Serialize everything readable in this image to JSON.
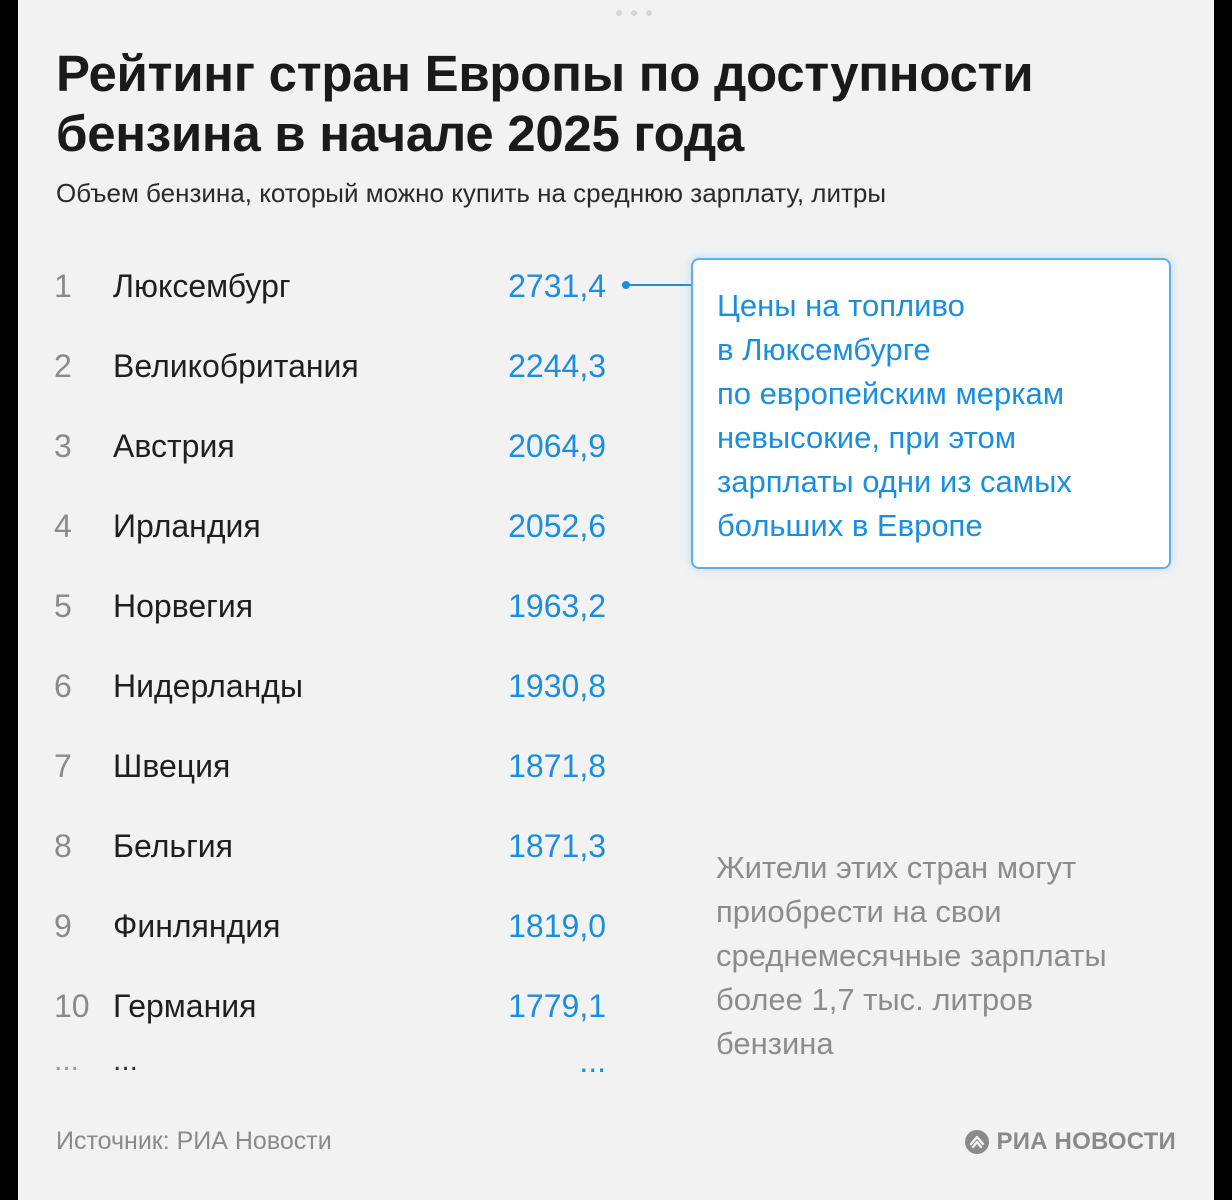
{
  "title_lines": [
    "Рейтинг стран Европы по доступности",
    "бензина в начале 2025 года"
  ],
  "subtitle": "Объем бензина, который можно купить на среднюю зарплату, литры",
  "colors": {
    "accent": "#1a8fe0",
    "background": "#f2f2f2",
    "text": "#1f1f1f",
    "muted": "#8a8a8a"
  },
  "ranking": [
    {
      "rank": "1",
      "country": "Люксембург",
      "value": "2731,4"
    },
    {
      "rank": "2",
      "country": "Великобритания",
      "value": "2244,3"
    },
    {
      "rank": "3",
      "country": "Австрия",
      "value": "2064,9"
    },
    {
      "rank": "4",
      "country": "Ирландия",
      "value": "2052,6"
    },
    {
      "rank": "5",
      "country": "Норвегия",
      "value": "1963,2"
    },
    {
      "rank": "6",
      "country": "Нидерланды",
      "value": "1930,8"
    },
    {
      "rank": "7",
      "country": "Швеция",
      "value": "1871,8"
    },
    {
      "rank": "8",
      "country": "Бельгия",
      "value": "1871,3"
    },
    {
      "rank": "9",
      "country": "Финляндия",
      "value": "1819,0"
    },
    {
      "rank": "10",
      "country": "Германия",
      "value": "1779,1"
    }
  ],
  "ellipsis": {
    "rank": "...",
    "country": "...",
    "value": "..."
  },
  "callout_lines": [
    "Цены на топливо",
    "в Люксембурге",
    "по европейским меркам",
    "невысокие, при этом",
    "зарплаты одни из самых",
    "больших в Европе"
  ],
  "note_lines": [
    "Жители этих стран могут",
    "приобрести на свои",
    "среднемесячные зарплаты",
    "более 1,7 тыс. литров",
    "бензина"
  ],
  "source": "Источник: РИА Новости",
  "brand": {
    "name": "РИА НОВОСТИ",
    "icon": "ria-logo-icon"
  }
}
